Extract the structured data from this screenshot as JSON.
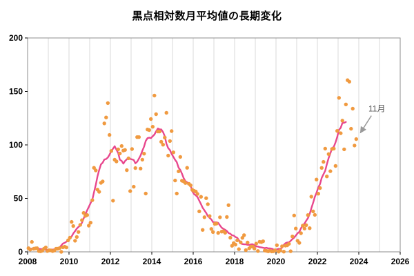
{
  "chart_data": {
    "type": "scatter",
    "title": "黒点相対数月平均値の長期変化",
    "xlabel": "",
    "ylabel": "",
    "xlim": [
      2008,
      2026
    ],
    "ylim": [
      0,
      200
    ],
    "x_tick_labels": [
      2008,
      2010,
      2012,
      2014,
      2016,
      2018,
      2020,
      2022,
      2024,
      2026
    ],
    "x_grid_step_years": 1,
    "y_ticks": [
      0,
      50,
      100,
      150,
      200
    ],
    "grid": "vertical-only",
    "colors": {
      "scatter": "#F09A40",
      "line": "#E8478D",
      "grid": "#D9D9D9",
      "frame": "#8C8C8C",
      "annotation": "#9A9A9A",
      "text": "#000000"
    },
    "series": [
      {
        "name": "monthly_means",
        "type": "scatter",
        "color": "#F09A40",
        "start_year": 2008,
        "start_month": 1,
        "values": [
          3.4,
          2.1,
          9.3,
          2.9,
          3.2,
          3.4,
          0.8,
          0.5,
          1.1,
          2.9,
          4.1,
          0.8,
          1.5,
          1.4,
          0.7,
          1.2,
          2.9,
          2.9,
          3.5,
          0.0,
          4.3,
          4.8,
          4.1,
          10.8,
          13.2,
          28.0,
          24.1,
          10.4,
          13.9,
          18.6,
          25.2,
          29.6,
          36.4,
          33.6,
          34.4,
          24.5,
          27.3,
          48.3,
          78.6,
          76.1,
          58.2,
          56.1,
          64.5,
          65.8,
          120.1,
          125.7,
          139.1,
          109.3,
          94.3,
          47.9,
          86.1,
          84.5,
          95.9,
          92.0,
          99.0,
          94.7,
          95.3,
          76.4,
          87.5,
          56.8,
          96.1,
          60.9,
          78.3,
          107.3,
          107.3,
          77.9,
          86.2,
          91.8,
          54.5,
          114.4,
          113.9,
          124.2,
          117.0,
          146.1,
          128.7,
          112.5,
          112.5,
          102.9,
          100.2,
          106.9,
          130.0,
          90.0,
          103.6,
          112.9,
          93.0,
          66.7,
          54.5,
          75.3,
          88.8,
          66.5,
          65.8,
          64.4,
          78.6,
          63.6,
          62.2,
          58.0,
          57.0,
          56.4,
          54.1,
          37.9,
          51.5,
          20.5,
          32.4,
          50.2,
          44.6,
          33.4,
          21.4,
          18.5,
          26.1,
          26.4,
          17.7,
          32.3,
          18.9,
          19.2,
          17.8,
          32.6,
          43.7,
          13.2,
          5.7,
          8.2,
          6.8,
          10.7,
          2.5,
          8.9,
          13.1,
          15.6,
          1.6,
          8.7,
          3.3,
          4.9,
          4.9,
          3.1,
          7.7,
          0.8,
          9.4,
          9.1,
          9.9,
          1.2,
          0.9,
          0.5,
          1.1,
          0.4,
          0.5,
          1.5,
          6.2,
          0.2,
          1.5,
          5.2,
          0.2,
          5.8,
          6.1,
          7.5,
          0.6,
          14.4,
          34.0,
          21.8,
          10.4,
          8.4,
          17.4,
          24.5,
          21.8,
          25.0,
          34.4,
          22.1,
          51.6,
          37.9,
          34.6,
          67.6,
          54.4,
          59.7,
          78.5,
          84.1,
          96.5,
          70.5,
          91.4,
          75.4,
          96.2,
          96.5,
          80.3,
          113.1,
          144.0,
          110.9,
          122.7,
          95.9,
          137.9,
          160.5,
          159.1,
          115.1,
          133.9,
          99.4,
          105.4
        ]
      },
      {
        "name": "smoothed_line",
        "type": "line",
        "color": "#E8478D",
        "derived_from": "monthly_means",
        "smoothing_months": 13
      }
    ],
    "annotation": {
      "label": "11月",
      "color": "#9A9A9A",
      "points_to": {
        "year": 2023,
        "month": 11,
        "value": 105.4
      }
    }
  }
}
